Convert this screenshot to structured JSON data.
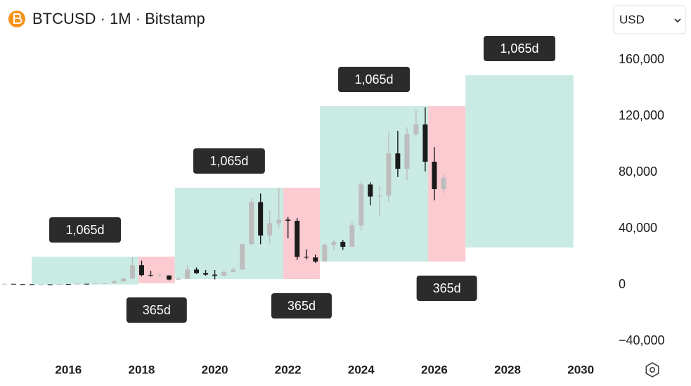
{
  "chart_data": {
    "type": "candlestick",
    "title": "BTCUSD · 1M · Bitstamp",
    "currency": "USD",
    "up_color": "#bdbdbd",
    "down_color": "#1a1a1a",
    "x": [
      2014.25,
      2014.5,
      2014.75,
      2015.0,
      2015.25,
      2015.5,
      2015.75,
      2016.0,
      2016.25,
      2016.5,
      2016.75,
      2017.0,
      2017.25,
      2017.5,
      2017.75,
      2018.0,
      2018.25,
      2018.5,
      2018.75,
      2019.0,
      2019.25,
      2019.5,
      2019.75,
      2020.0,
      2020.25,
      2020.5,
      2020.75,
      2021.0,
      2021.25,
      2021.5,
      2021.75,
      2022.0,
      2022.25,
      2022.5,
      2022.75,
      2023.0,
      2023.25,
      2023.5,
      2023.75,
      2024.0,
      2024.25,
      2024.5,
      2024.75,
      2025.0,
      2025.25,
      2025.5,
      2025.75,
      2026.0,
      2026.25
    ],
    "open": [
      450,
      640,
      390,
      320,
      245,
      263,
      236,
      430,
      415,
      670,
      610,
      960,
      1080,
      2480,
      4340,
      13900,
      6900,
      6400,
      6600,
      3700,
      4100,
      10800,
      8300,
      7200,
      6400,
      9100,
      10800,
      29000,
      58800,
      35000,
      43800,
      46300,
      45500,
      19800,
      19400,
      16500,
      28500,
      30500,
      27000,
      42300,
      71300,
      62700,
      63300,
      93400,
      82500,
      107100,
      114000,
      87500,
      68000
    ],
    "high": [
      680,
      660,
      480,
      320,
      260,
      320,
      500,
      460,
      780,
      680,
      980,
      1300,
      3000,
      5000,
      19700,
      17200,
      9990,
      8500,
      6800,
      5600,
      13900,
      12300,
      10500,
      10500,
      10400,
      12500,
      29300,
      61800,
      64900,
      52900,
      69000,
      48200,
      47400,
      25200,
      21400,
      29200,
      31800,
      31800,
      44700,
      73800,
      72800,
      70000,
      108300,
      109500,
      111900,
      124100,
      126200,
      97900,
      79000
    ],
    "low": [
      340,
      380,
      310,
      170,
      200,
      200,
      210,
      360,
      410,
      530,
      590,
      880,
      1080,
      1830,
      4100,
      5900,
      5750,
      5880,
      3100,
      3350,
      4100,
      7700,
      6500,
      3800,
      6200,
      8900,
      10400,
      28100,
      28800,
      29300,
      40000,
      33000,
      17600,
      18100,
      15500,
      16500,
      24800,
      24900,
      26900,
      38500,
      56500,
      49000,
      58900,
      76600,
      74400,
      105200,
      80600,
      60000,
      65000
    ],
    "close": [
      640,
      390,
      320,
      245,
      263,
      236,
      430,
      415,
      670,
      610,
      960,
      1080,
      2480,
      4340,
      13900,
      6900,
      6400,
      6600,
      3700,
      4100,
      10800,
      8300,
      7200,
      6400,
      9100,
      10800,
      29000,
      58800,
      35000,
      43800,
      46300,
      45500,
      19800,
      19400,
      16500,
      28500,
      30500,
      27000,
      42300,
      71300,
      62700,
      63300,
      93400,
      82500,
      107100,
      114000,
      87500,
      68000,
      76000
    ],
    "xlim": [
      2014.13,
      2030.65
    ],
    "xticks": [
      2016,
      2018,
      2020,
      2022,
      2024,
      2026,
      2028,
      2030
    ],
    "ylim": [
      -50000,
      175000
    ],
    "yticks": [
      {
        "value": -40000,
        "label": "−40,000"
      },
      0,
      {
        "value": 40000,
        "label": "40,000"
      },
      {
        "value": 80000,
        "label": "80,000"
      },
      {
        "value": 120000,
        "label": "120,000"
      },
      {
        "value": 160000,
        "label": "160,000"
      }
    ],
    "zones": [
      {
        "label": "1,065d",
        "color": "#c9ebe3",
        "x": [
          2015.0,
          2017.91
        ],
        "y": [
          200,
          20000
        ]
      },
      {
        "label": "365d",
        "color": "#fbcbd1",
        "x": [
          2017.91,
          2018.91
        ],
        "y": [
          1000,
          20000
        ]
      },
      {
        "label": "1,065d",
        "color": "#c9ebe3",
        "x": [
          2018.91,
          2021.87
        ],
        "y": [
          4000,
          69000
        ]
      },
      {
        "label": "365d",
        "color": "#fbcbd1",
        "x": [
          2021.87,
          2022.87
        ],
        "y": [
          4000,
          69000
        ]
      },
      {
        "label": "1,065d",
        "color": "#c9ebe3",
        "x": [
          2022.87,
          2025.83
        ],
        "y": [
          16500,
          127000
        ]
      },
      {
        "label": "365d",
        "color": "#fbcbd1",
        "x": [
          2025.83,
          2026.85
        ],
        "y": [
          16500,
          127000
        ]
      },
      {
        "label": "1,065d",
        "color": "#c9ebe3",
        "x": [
          2026.85,
          2029.8
        ],
        "y": [
          26500,
          149000
        ]
      }
    ]
  }
}
